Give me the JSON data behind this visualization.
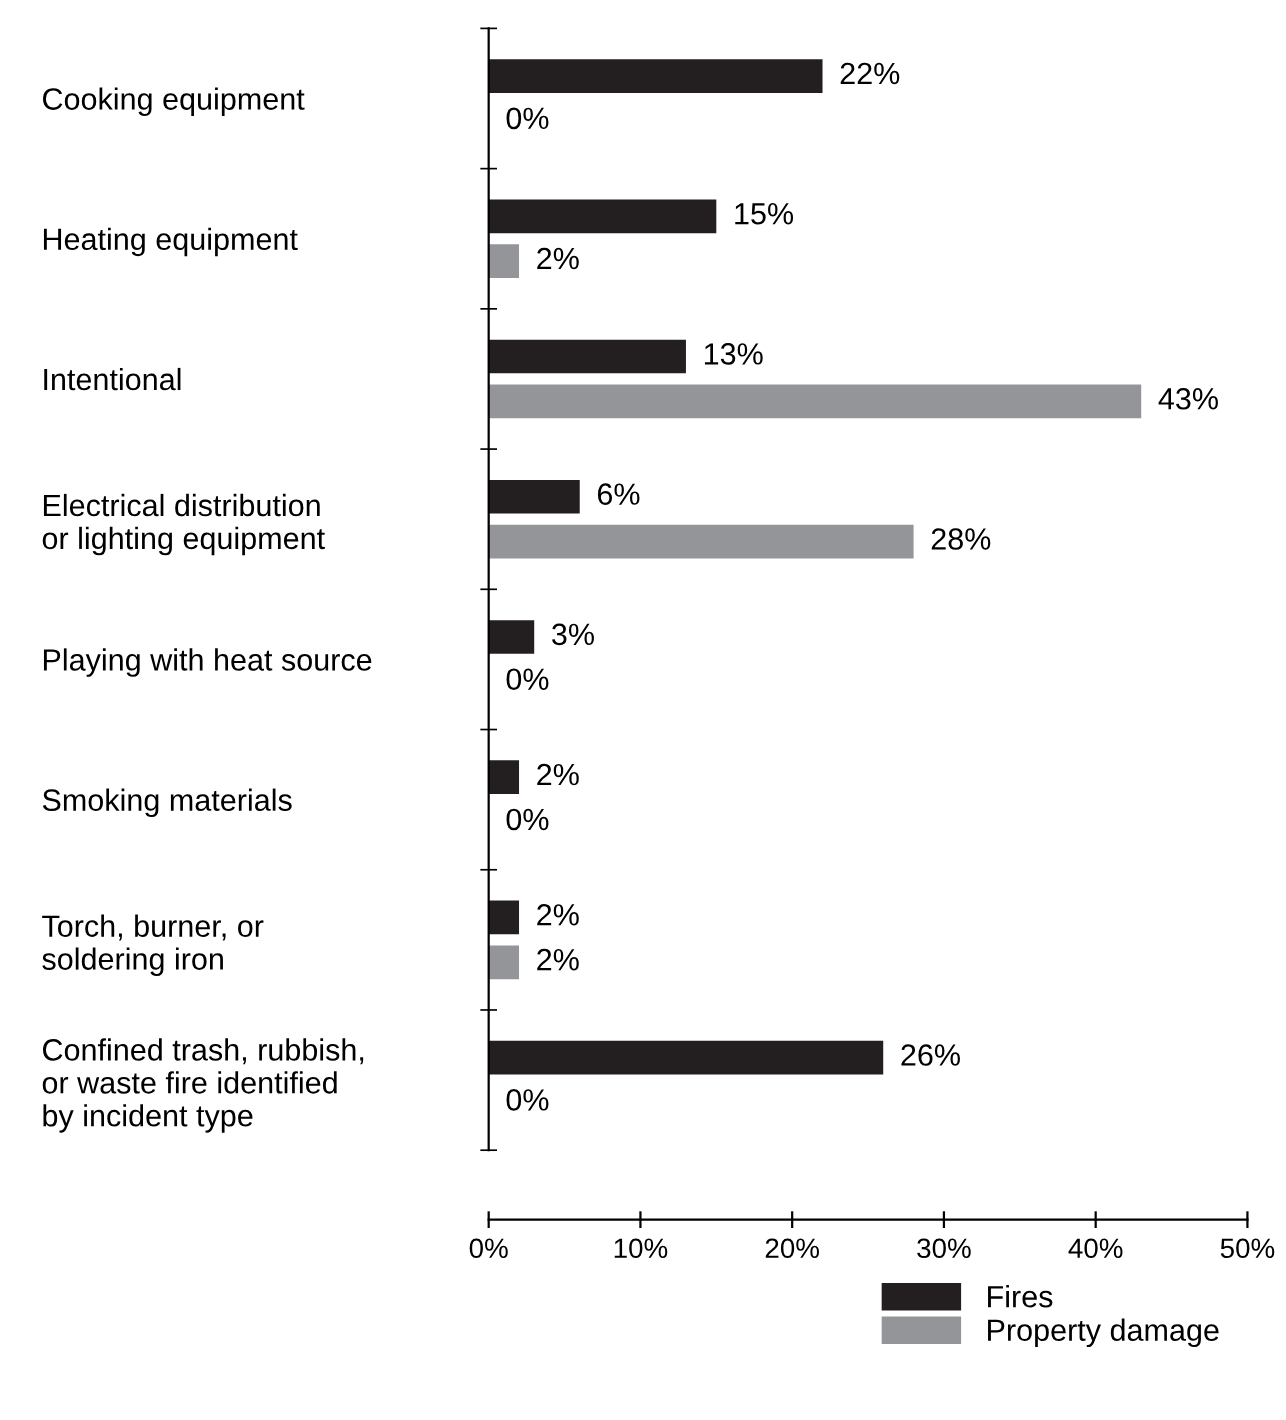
{
  "chart_data": {
    "type": "bar",
    "orientation": "horizontal",
    "categories": [
      "Cooking equipment",
      "Heating equipment",
      "Intentional",
      "Electrical distribution\nor lighting equipment",
      "Playing with heat source",
      "Smoking materials",
      "Torch, burner, or\nsoldering iron",
      "Confined trash, rubbish,\nor waste fire identified\nby incident type"
    ],
    "series": [
      {
        "name": "Fires",
        "color": "#231f20",
        "values": [
          22,
          15,
          13,
          6,
          3,
          2,
          2,
          26
        ],
        "value_labels": [
          "22%",
          "15%",
          "13%",
          "6%",
          "3%",
          "2%",
          "2%",
          "26%"
        ]
      },
      {
        "name": "Property damage",
        "color": "#939598",
        "values": [
          0,
          2,
          43,
          28,
          0,
          0,
          2,
          0
        ],
        "value_labels": [
          "0%",
          "2%",
          "43%",
          "28%",
          "0%",
          "0%",
          "2%",
          "0%"
        ]
      }
    ],
    "xlim": [
      0,
      50
    ],
    "xticks": [
      {
        "value": 0,
        "label": "0%"
      },
      {
        "value": 10,
        "label": "10%"
      },
      {
        "value": 20,
        "label": "20%"
      },
      {
        "value": 30,
        "label": "30%"
      },
      {
        "value": 40,
        "label": "40%"
      },
      {
        "value": 50,
        "label": "50%"
      }
    ],
    "grid": false,
    "legend": "bottom right"
  }
}
